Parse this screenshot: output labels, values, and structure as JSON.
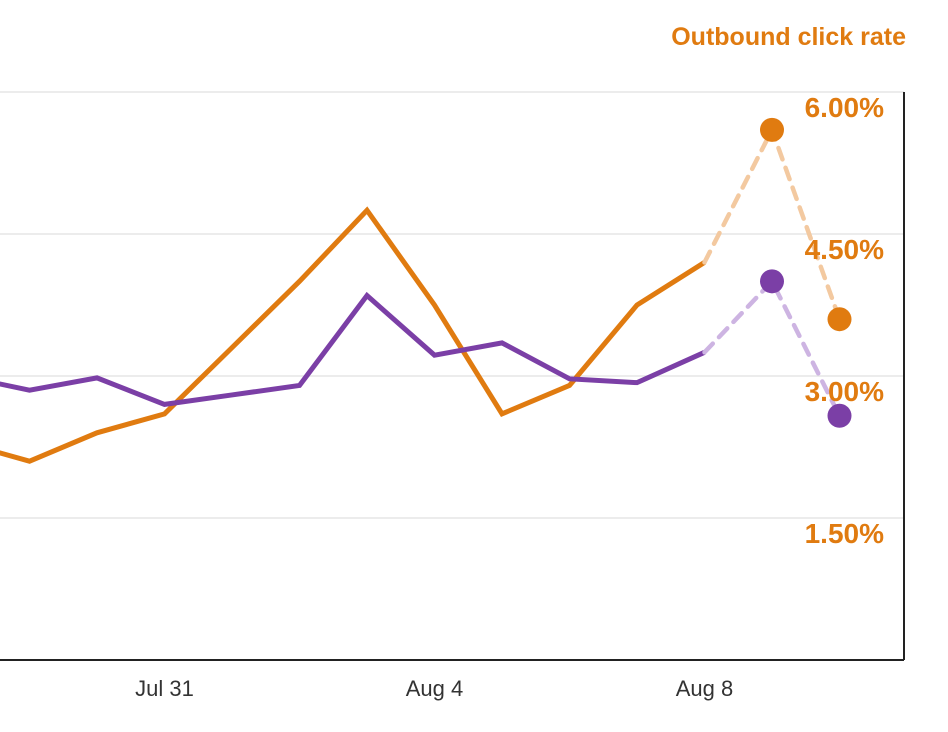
{
  "chart_data": {
    "type": "line",
    "ylabel": "Outbound click rate",
    "ylim": [
      0,
      6.0
    ],
    "yticks": [
      1.5,
      3.0,
      4.5,
      6.0
    ],
    "ytick_labels": [
      "1.50%",
      "3.00%",
      "4.50%",
      "6.00%"
    ],
    "xticks": [
      {
        "x": 3,
        "label": "Jul 31"
      },
      {
        "x": 7,
        "label": "Aug 4"
      },
      {
        "x": 11,
        "label": "Aug 8"
      }
    ],
    "x": [
      0,
      1,
      2,
      3,
      4,
      5,
      6,
      7,
      8,
      9,
      10,
      11
    ],
    "forecast_x": [
      11,
      12,
      13
    ],
    "grid": true,
    "series": [
      {
        "color": "#e07b10",
        "forecast_color": "#f3c9a0",
        "values": [
          2.3,
          2.1,
          2.4,
          2.6,
          3.3,
          4.0,
          4.75,
          3.75,
          2.6,
          2.9,
          3.75,
          4.2
        ],
        "forecast": [
          4.2,
          5.6,
          3.6
        ]
      },
      {
        "color": "#7b3fa6",
        "forecast_color": "#cdb4e2",
        "values": [
          3.0,
          2.85,
          2.98,
          2.7,
          2.8,
          2.9,
          3.85,
          3.22,
          3.35,
          2.97,
          2.93,
          3.25
        ],
        "forecast": [
          3.25,
          4.0,
          2.58
        ]
      }
    ]
  },
  "colors": {
    "axis_label": "#e07b10",
    "grid": "#e6e6e6",
    "axis": "#222222"
  }
}
